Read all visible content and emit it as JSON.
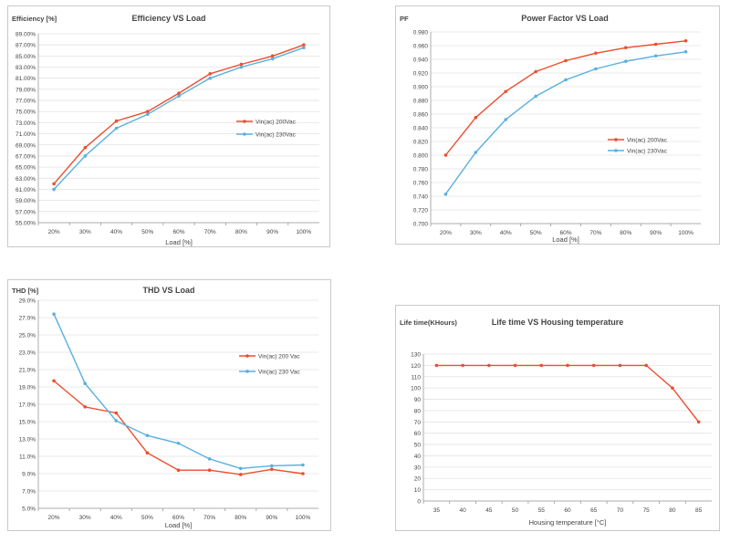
{
  "colors": {
    "series_a": "#ee4d2d",
    "series_b": "#5ab0dd",
    "grid": "#e2e2e2",
    "axis": "#9a9a9a"
  },
  "chart_data": [
    {
      "type": "line",
      "title": "Efficiency VS Load",
      "ylabel": "Efficiency [%]",
      "xlabel": "Load [%]",
      "categories": [
        "20%",
        "30%",
        "40%",
        "50%",
        "60%",
        "70%",
        "80%",
        "90%",
        "100%"
      ],
      "ylim": [
        55,
        89
      ],
      "yticks": [
        "55.00%",
        "57.00%",
        "59.00%",
        "61.00%",
        "63.00%",
        "65.00%",
        "67.00%",
        "69.00%",
        "71.00%",
        "73.00%",
        "75.00%",
        "77.00%",
        "79.00%",
        "81.00%",
        "83.00%",
        "85.00%",
        "87.00%",
        "89.00%"
      ],
      "legend": "right",
      "grid": true,
      "series": [
        {
          "name": "Vin(ac) 200Vac",
          "values": [
            62.0,
            68.5,
            73.3,
            75.0,
            78.3,
            81.8,
            83.5,
            85.0,
            87.0
          ]
        },
        {
          "name": "Vin(ac) 230Vac",
          "values": [
            61.0,
            67.0,
            72.0,
            74.5,
            77.8,
            81.0,
            83.0,
            84.5,
            86.5
          ]
        }
      ]
    },
    {
      "type": "line",
      "title": "Power Factor VS Load",
      "ylabel": "PF",
      "xlabel": "Load [%]",
      "categories": [
        "20%",
        "30%",
        "40%",
        "50%",
        "60%",
        "70%",
        "80%",
        "90%",
        "100%"
      ],
      "ylim": [
        0.7,
        0.98
      ],
      "yticks": [
        "0.700",
        "0.720",
        "0.740",
        "0.760",
        "0.780",
        "0.800",
        "0.820",
        "0.840",
        "0.860",
        "0.880",
        "0.900",
        "0.920",
        "0.940",
        "0.960",
        "0.980"
      ],
      "legend": "right",
      "grid": true,
      "series": [
        {
          "name": "Vin(ac) 200Vac",
          "values": [
            0.8,
            0.855,
            0.893,
            0.922,
            0.938,
            0.949,
            0.957,
            0.962,
            0.967
          ]
        },
        {
          "name": "Vin(ac) 230Vac",
          "values": [
            0.743,
            0.804,
            0.852,
            0.886,
            0.91,
            0.926,
            0.937,
            0.945,
            0.951
          ]
        }
      ]
    },
    {
      "type": "line",
      "title": "THD VS Load",
      "ylabel": "THD [%]",
      "xlabel": "Load [%]",
      "categories": [
        "20%",
        "30%",
        "40%",
        "50%",
        "60%",
        "70%",
        "80%",
        "90%",
        "100%"
      ],
      "ylim": [
        5,
        29
      ],
      "yticks": [
        "5.0%",
        "7.0%",
        "9.0%",
        "11.0%",
        "13.0%",
        "15.0%",
        "17.0%",
        "19.0%",
        "21.0%",
        "23.0%",
        "25.0%",
        "27.0%",
        "29.0%"
      ],
      "legend": "right",
      "grid": true,
      "series": [
        {
          "name": "Vin(ac) 200 Vac",
          "values": [
            19.7,
            16.7,
            16.0,
            11.4,
            9.4,
            9.4,
            8.9,
            9.5,
            9.0
          ]
        },
        {
          "name": "Vin(ac) 230 Vac",
          "values": [
            27.4,
            19.4,
            15.1,
            13.4,
            12.5,
            10.7,
            9.6,
            9.9,
            10.0
          ]
        }
      ]
    },
    {
      "type": "line",
      "title": "Life time VS Housing temperature",
      "ylabel": "Life time(KHours)",
      "xlabel": "Housing temperature [°C]",
      "categories": [
        "35",
        "40",
        "45",
        "50",
        "55",
        "60",
        "65",
        "70",
        "75",
        "80",
        "85"
      ],
      "ylim": [
        0,
        130
      ],
      "yticks": [
        "0",
        "10",
        "20",
        "30",
        "40",
        "50",
        "60",
        "70",
        "80",
        "90",
        "100",
        "110",
        "120",
        "130"
      ],
      "legend": "none",
      "grid": true,
      "series": [
        {
          "values": [
            120,
            120,
            120,
            120,
            120,
            120,
            120,
            120,
            120,
            100,
            70
          ]
        }
      ]
    }
  ]
}
